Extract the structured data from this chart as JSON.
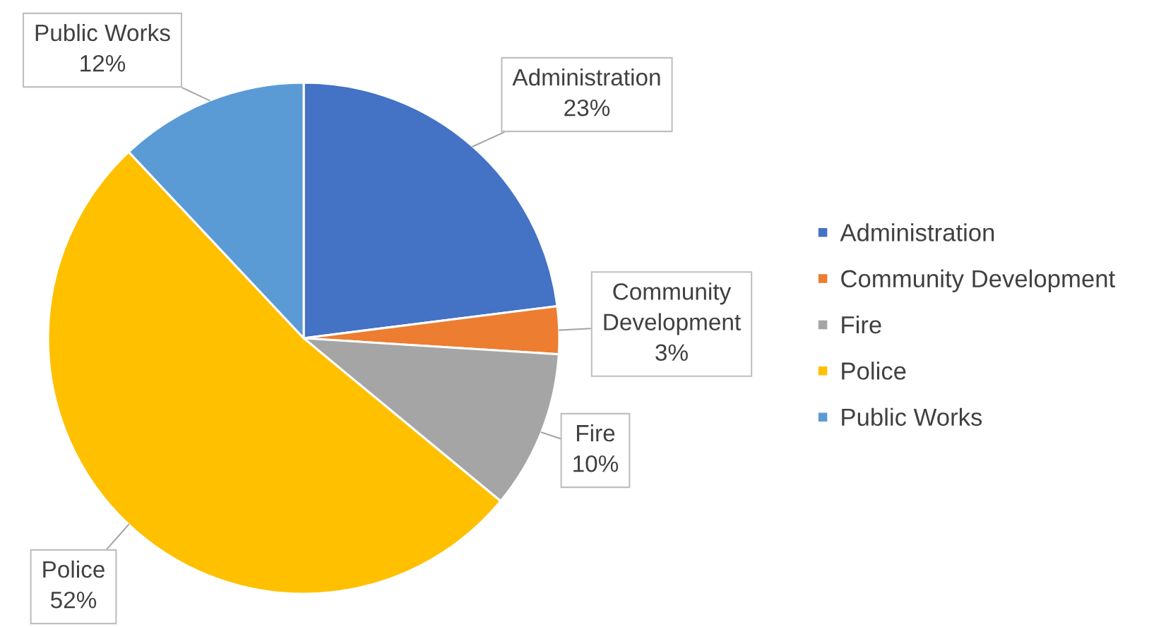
{
  "chart_data": {
    "type": "pie",
    "categories": [
      "Administration",
      "Community Development",
      "Fire",
      "Police",
      "Public Works"
    ],
    "values": [
      23,
      3,
      10,
      52,
      12
    ],
    "value_labels": [
      "23%",
      "3%",
      "10%",
      "52%",
      "12%"
    ],
    "colors": [
      "#4472c4",
      "#ed7d31",
      "#a5a5a5",
      "#ffc000",
      "#5b9bd5"
    ],
    "legend": "right"
  }
}
